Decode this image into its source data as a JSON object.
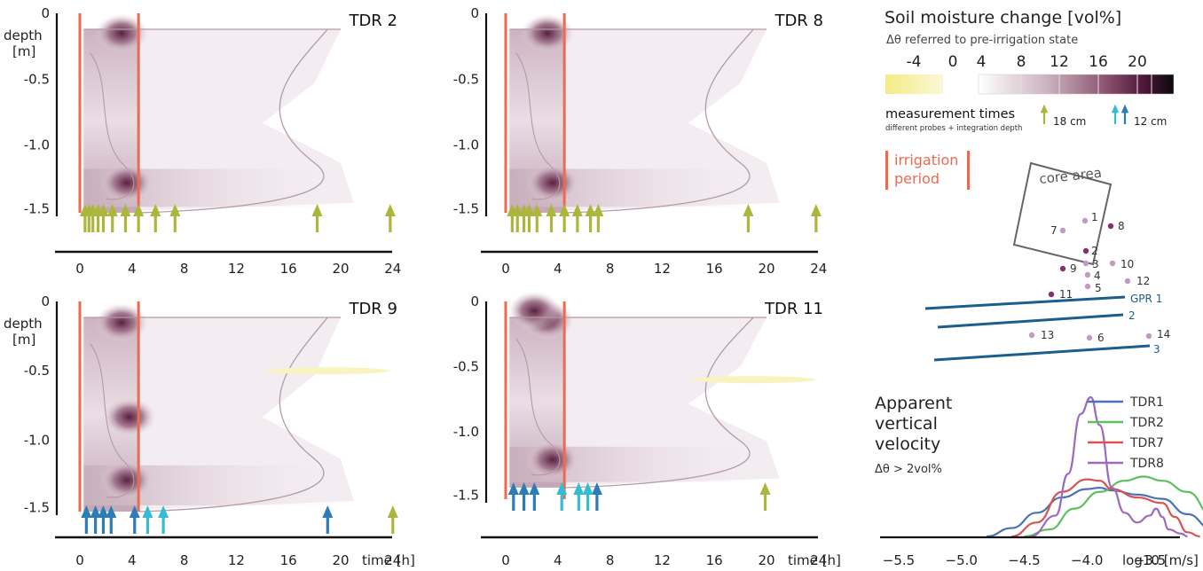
{
  "colors": {
    "irrigation": "#ec6a4e",
    "arrow_18cm": "#acb53c",
    "arrow_12cm_a": "#2c7cb8",
    "arrow_12cm_b": "#35bcd3",
    "contour": "#b39aa6",
    "gpr": "#1b5e8c"
  },
  "panels": [
    {
      "id": "tdr2",
      "title": "TDR 2",
      "ytick_labels": [
        "0",
        "-0.5",
        "-1.0",
        "-1.5"
      ],
      "ylabel": [
        "depth",
        "[m]"
      ],
      "xtick_labels": [
        "0",
        "4",
        "8",
        "12",
        "16",
        "20",
        "24"
      ],
      "xlabel": "",
      "irrigation": [
        0,
        4.5
      ],
      "arrows_18cm": [
        0.4,
        0.7,
        1.0,
        1.4,
        1.8,
        2.5,
        3.5,
        4.5,
        5.8,
        7.3,
        18.2,
        23.8
      ],
      "arrows_12cm_a": [],
      "arrows_12cm_b": []
    },
    {
      "id": "tdr8",
      "title": "TDR 8",
      "ytick_labels": [
        "0",
        "-0.5",
        "-1.0",
        "-1.5"
      ],
      "ylabel": [
        "",
        ""
      ],
      "xtick_labels": [
        "0",
        "4",
        "8",
        "12",
        "16",
        "20",
        "24"
      ],
      "xlabel": "",
      "irrigation": [
        0,
        4.5
      ],
      "arrows_18cm": [
        0.5,
        0.9,
        1.4,
        1.8,
        2.4,
        3.5,
        4.5,
        5.5,
        6.5,
        7.1,
        18.6,
        23.8
      ],
      "arrows_12cm_a": [],
      "arrows_12cm_b": []
    },
    {
      "id": "tdr9",
      "title": "TDR 9",
      "ytick_labels": [
        "0",
        "-0.5",
        "-1.0",
        "-1.5"
      ],
      "ylabel": [
        "depth",
        "[m]"
      ],
      "xtick_labels": [
        "0",
        "4",
        "8",
        "12",
        "16",
        "20",
        "24"
      ],
      "xlabel": "time [h]",
      "irrigation": [
        0,
        4.5
      ],
      "arrows_18cm": [
        24.0
      ],
      "arrows_12cm_a": [
        0.5,
        1.2,
        1.8,
        2.4,
        4.2,
        19.0
      ],
      "arrows_12cm_b": [
        5.2,
        6.4
      ]
    },
    {
      "id": "tdr11",
      "title": "TDR 11",
      "ytick_labels": [
        "0",
        "-0.5",
        "-1.0",
        "-1.5"
      ],
      "ylabel": [
        "",
        ""
      ],
      "xtick_labels": [
        "0",
        "4",
        "8",
        "12",
        "16",
        "20",
        "24"
      ],
      "xlabel": "time [h]",
      "irrigation": [
        0,
        4.5
      ],
      "arrows_18cm": [
        19.9
      ],
      "arrows_12cm_a": [
        0.6,
        1.4,
        2.2,
        7.0
      ],
      "arrows_12cm_b": [
        4.3,
        5.6,
        6.3
      ]
    }
  ],
  "legend": {
    "title": "Soil moisture change [vol%]",
    "subtitle": "Δθ referred to pre-irrigation state",
    "scale_labels": [
      "-4",
      "0",
      "4",
      "8",
      "12",
      "16",
      "20"
    ],
    "measurement_title": "measurement times",
    "measurement_sub": "different probes + integration depth",
    "label_18cm": "18 cm",
    "label_12cm": "12 cm",
    "irrigation_line1": "irrigation",
    "irrigation_line2": "period"
  },
  "map": {
    "core_area": "core area",
    "probes": [
      {
        "label": "7",
        "dark": false
      },
      {
        "label": "1",
        "dark": false
      },
      {
        "label": "8",
        "dark": true
      },
      {
        "label": "2",
        "dark": true
      },
      {
        "label": "9",
        "dark": true
      },
      {
        "label": "3",
        "dark": false
      },
      {
        "label": "10",
        "dark": false
      },
      {
        "label": "4",
        "dark": false
      },
      {
        "label": "12",
        "dark": false
      },
      {
        "label": "5",
        "dark": false
      },
      {
        "label": "11",
        "dark": true
      },
      {
        "label": "13",
        "dark": false
      },
      {
        "label": "6",
        "dark": false
      },
      {
        "label": "14",
        "dark": false
      }
    ],
    "gpr_labels": [
      "GPR 1",
      "2",
      "3"
    ]
  },
  "chart_data": {
    "type": "line",
    "title": [
      "Apparent",
      "vertical",
      "velocity"
    ],
    "subtitle": "Δθ > 2vol%",
    "xlabel": "log10 [m/s]",
    "x_ticks": [
      -5.5,
      -5.0,
      -4.5,
      -4.0,
      -3.5
    ],
    "xtick_labels": [
      "−5.5",
      "−5.0",
      "−4.5",
      "−4.0",
      "−3.5"
    ],
    "xlim": [
      -5.5,
      -2.8
    ],
    "ylim": [
      0,
      1
    ],
    "legend_position": "top-right",
    "series": [
      {
        "name": "TDR1",
        "color": "#4a72b5",
        "x": [
          -4.8,
          -4.6,
          -4.4,
          -4.2,
          -4.0,
          -3.9,
          -3.8,
          -3.6,
          -3.4,
          -3.2,
          -3.0,
          -2.9
        ],
        "y": [
          0,
          0.06,
          0.17,
          0.28,
          0.34,
          0.35,
          0.33,
          0.3,
          0.27,
          0.16,
          0.05,
          0.02
        ]
      },
      {
        "name": "TDR2",
        "color": "#5dbf5d",
        "x": [
          -4.5,
          -4.3,
          -4.1,
          -3.9,
          -3.7,
          -3.55,
          -3.4,
          -3.2,
          -3.0,
          -2.85
        ],
        "y": [
          0,
          0.05,
          0.2,
          0.32,
          0.4,
          0.43,
          0.4,
          0.32,
          0.15,
          0.05
        ]
      },
      {
        "name": "TDR7",
        "color": "#d9534f",
        "x": [
          -4.6,
          -4.4,
          -4.2,
          -4.0,
          -3.9,
          -3.8,
          -3.6,
          -3.4,
          -3.3,
          -3.2,
          -3.1
        ],
        "y": [
          0,
          0.1,
          0.32,
          0.41,
          0.4,
          0.34,
          0.28,
          0.24,
          0.14,
          0.03,
          0.0
        ]
      },
      {
        "name": "TDR8",
        "color": "#9b6bbf",
        "x": [
          -4.45,
          -4.25,
          -4.15,
          -4.05,
          -3.97,
          -3.9,
          -3.8,
          -3.7,
          -3.6,
          -3.5,
          -3.45,
          -3.4,
          -3.35,
          -3.25,
          -3.2
        ],
        "y": [
          0,
          0.15,
          0.45,
          0.88,
          1.0,
          0.8,
          0.35,
          0.17,
          0.1,
          0.15,
          0.2,
          0.14,
          0.05,
          0.02,
          0.0
        ]
      }
    ]
  }
}
